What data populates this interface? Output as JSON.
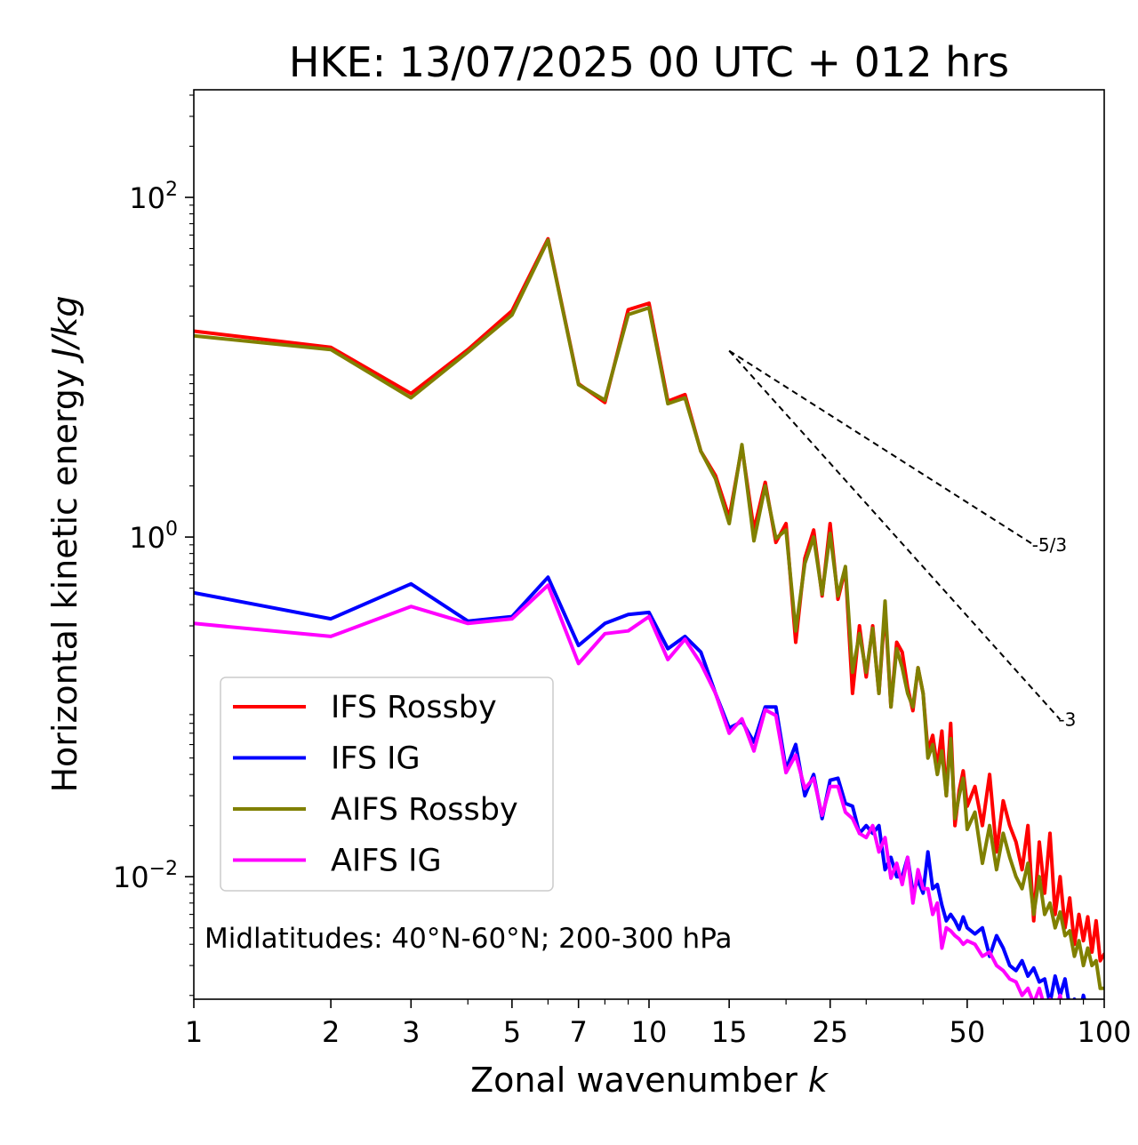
{
  "chart_data": {
    "type": "line",
    "title": "HKE: 13/07/2025 00 UTC + 012 hrs",
    "xlabel": "Zonal wavenumber",
    "xlabel_symbol": "k",
    "ylabel": "Horizontal kinetic energy",
    "ylabel_units": "J/kg",
    "xscale": "log",
    "yscale": "log",
    "xlim": [
      1,
      100
    ],
    "ylim": [
      0.0019,
      430
    ],
    "x_ticks": [
      1,
      2,
      3,
      5,
      7,
      10,
      15,
      25,
      50,
      100
    ],
    "x_tick_labels": [
      "1",
      "2",
      "3",
      "5",
      "7",
      "10",
      "15",
      "25",
      "50",
      "100"
    ],
    "y_ticks": [
      {
        "value": 100,
        "base": "10",
        "exp": "2"
      },
      {
        "value": 1,
        "base": "10",
        "exp": "0"
      },
      {
        "value": 0.01,
        "base": "10",
        "exp": "−2"
      }
    ],
    "grid": false,
    "legend_position": "lower-left",
    "annotation": "Midlatitudes: 40°N-60°N; 200-300 hPa",
    "slope_lines": [
      {
        "label": "-5/3",
        "x": [
          15,
          70
        ],
        "y": [
          12.5,
          0.9
        ]
      },
      {
        "label": "-3",
        "x": [
          15,
          80
        ],
        "y": [
          12.5,
          0.0842
        ]
      }
    ],
    "series": [
      {
        "name": "IFS Rossby",
        "color": "#ff0000",
        "x": [
          1,
          2,
          3,
          4,
          5,
          6,
          7,
          8,
          9,
          10,
          11,
          12,
          13,
          14,
          15,
          16,
          17,
          18,
          19,
          20,
          21,
          22,
          23,
          24,
          25,
          26,
          27,
          28,
          29,
          30,
          31,
          32,
          33,
          34,
          35,
          36,
          37,
          38,
          39,
          40,
          41,
          42,
          43,
          44,
          45,
          46,
          47,
          48,
          49,
          50,
          52,
          54,
          56,
          58,
          60,
          62,
          64,
          66,
          68,
          70,
          72,
          74,
          76,
          78,
          80,
          82,
          84,
          86,
          88,
          90,
          92,
          94,
          96,
          98,
          100
        ],
        "y": [
          16.3,
          13.1,
          7.0,
          12.7,
          21.5,
          57,
          8.0,
          6.2,
          21.8,
          23.8,
          6.3,
          6.9,
          3.2,
          2.3,
          1.3,
          3.4,
          1.1,
          2.1,
          0.93,
          1.2,
          0.24,
          0.75,
          1.1,
          0.45,
          1.2,
          0.43,
          0.65,
          0.12,
          0.3,
          0.15,
          0.3,
          0.12,
          0.38,
          0.1,
          0.24,
          0.21,
          0.13,
          0.095,
          0.17,
          0.12,
          0.055,
          0.068,
          0.044,
          0.072,
          0.03,
          0.08,
          0.02,
          0.032,
          0.042,
          0.026,
          0.034,
          0.02,
          0.04,
          0.014,
          0.028,
          0.02,
          0.016,
          0.011,
          0.02,
          0.0055,
          0.016,
          0.008,
          0.018,
          0.006,
          0.01,
          0.005,
          0.0075,
          0.004,
          0.006,
          0.0042,
          0.0058,
          0.0036,
          0.0055,
          0.0032,
          0.0035
        ]
      },
      {
        "name": "IFS IG",
        "color": "#0000ff",
        "x": [
          1,
          2,
          3,
          4,
          5,
          6,
          7,
          8,
          9,
          10,
          11,
          12,
          13,
          14,
          15,
          16,
          17,
          18,
          19,
          20,
          21,
          22,
          23,
          24,
          25,
          26,
          27,
          28,
          29,
          30,
          31,
          32,
          33,
          34,
          35,
          36,
          37,
          38,
          39,
          40,
          41,
          42,
          43,
          44,
          45,
          46,
          47,
          48,
          49,
          50,
          52,
          54,
          56,
          58,
          60,
          62,
          64,
          66,
          68,
          70,
          72,
          74,
          76,
          78,
          80,
          82,
          84,
          86,
          88,
          90,
          92,
          94,
          96,
          98,
          100
        ],
        "y": [
          0.47,
          0.33,
          0.53,
          0.32,
          0.34,
          0.58,
          0.23,
          0.31,
          0.35,
          0.36,
          0.22,
          0.26,
          0.21,
          0.12,
          0.075,
          0.082,
          0.062,
          0.1,
          0.1,
          0.043,
          0.06,
          0.03,
          0.04,
          0.022,
          0.037,
          0.038,
          0.027,
          0.026,
          0.018,
          0.02,
          0.018,
          0.02,
          0.011,
          0.013,
          0.01,
          0.01,
          0.013,
          0.0081,
          0.0095,
          0.008,
          0.014,
          0.0085,
          0.009,
          0.0068,
          0.0055,
          0.006,
          0.0055,
          0.0049,
          0.0058,
          0.005,
          0.0046,
          0.005,
          0.0034,
          0.0045,
          0.0038,
          0.003,
          0.0028,
          0.0032,
          0.0026,
          0.0029,
          0.0024,
          0.0025,
          0.0018,
          0.0026,
          0.002,
          0.0025,
          0.0017,
          0.0019,
          0.0015,
          0.002,
          0.0016,
          0.0018,
          0.0014,
          0.0016,
          0.0015
        ]
      },
      {
        "name": "AIFS Rossby",
        "color": "#808000",
        "x": [
          1,
          2,
          3,
          4,
          5,
          6,
          7,
          8,
          9,
          10,
          11,
          12,
          13,
          14,
          15,
          16,
          17,
          18,
          19,
          20,
          21,
          22,
          23,
          24,
          25,
          26,
          27,
          28,
          29,
          30,
          31,
          32,
          33,
          34,
          35,
          36,
          37,
          38,
          39,
          40,
          41,
          42,
          43,
          44,
          45,
          46,
          47,
          48,
          49,
          50,
          52,
          54,
          56,
          58,
          60,
          62,
          64,
          66,
          68,
          70,
          72,
          74,
          76,
          78,
          80,
          82,
          84,
          86,
          88,
          90,
          92,
          94,
          96,
          98,
          100
        ],
        "y": [
          15.3,
          12.7,
          6.6,
          12.3,
          20.3,
          56,
          7.9,
          6.4,
          20.4,
          22.4,
          6.1,
          6.6,
          3.2,
          2.2,
          1.2,
          3.5,
          0.95,
          2.0,
          0.98,
          1.1,
          0.28,
          0.7,
          1.0,
          0.46,
          1.05,
          0.45,
          0.67,
          0.16,
          0.27,
          0.16,
          0.29,
          0.12,
          0.42,
          0.1,
          0.22,
          0.17,
          0.12,
          0.1,
          0.17,
          0.12,
          0.05,
          0.06,
          0.04,
          0.055,
          0.03,
          0.065,
          0.022,
          0.03,
          0.038,
          0.019,
          0.024,
          0.012,
          0.02,
          0.011,
          0.018,
          0.013,
          0.01,
          0.0085,
          0.012,
          0.006,
          0.01,
          0.006,
          0.007,
          0.005,
          0.0062,
          0.0045,
          0.0048,
          0.0034,
          0.0042,
          0.003,
          0.0038,
          0.003,
          0.0032,
          0.0022,
          0.0022
        ]
      },
      {
        "name": "AIFS IG",
        "color": "#ff00ff",
        "x": [
          1,
          2,
          3,
          4,
          5,
          6,
          7,
          8,
          9,
          10,
          11,
          12,
          13,
          14,
          15,
          16,
          17,
          18,
          19,
          20,
          21,
          22,
          23,
          24,
          25,
          26,
          27,
          28,
          29,
          30,
          31,
          32,
          33,
          34,
          35,
          36,
          37,
          38,
          39,
          40,
          41,
          42,
          43,
          44,
          45,
          46,
          47,
          48,
          49,
          50,
          52,
          54,
          56,
          58,
          60,
          62,
          64,
          66,
          68,
          70,
          72,
          74,
          76,
          78,
          80,
          82,
          84,
          86,
          88,
          90,
          92,
          94,
          96,
          98,
          100
        ],
        "y": [
          0.31,
          0.26,
          0.39,
          0.31,
          0.33,
          0.52,
          0.18,
          0.27,
          0.28,
          0.34,
          0.19,
          0.25,
          0.18,
          0.12,
          0.07,
          0.085,
          0.055,
          0.096,
          0.089,
          0.041,
          0.052,
          0.033,
          0.038,
          0.023,
          0.034,
          0.034,
          0.024,
          0.022,
          0.018,
          0.017,
          0.02,
          0.014,
          0.017,
          0.0098,
          0.012,
          0.009,
          0.013,
          0.007,
          0.011,
          0.0085,
          0.0085,
          0.006,
          0.007,
          0.0038,
          0.005,
          0.0048,
          0.0045,
          0.0043,
          0.004,
          0.0042,
          0.004,
          0.0034,
          0.0036,
          0.003,
          0.0028,
          0.0025,
          0.0024,
          0.002,
          0.0022,
          0.0018,
          0.0022,
          0.0017,
          0.0019,
          0.0016,
          0.002,
          0.0014,
          0.0017,
          0.0013,
          0.0015,
          0.0012,
          0.0014,
          0.0012,
          0.0013,
          0.0011,
          0.0012
        ]
      }
    ]
  }
}
